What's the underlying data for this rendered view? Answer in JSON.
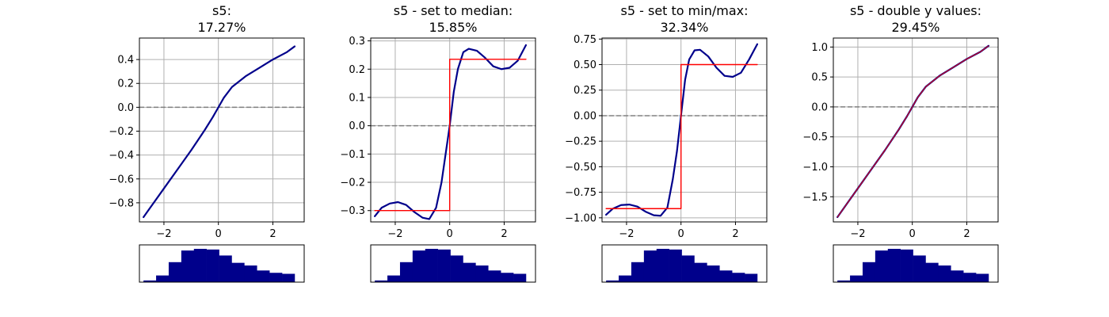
{
  "figure": {
    "colors": {
      "curve": "#00008b",
      "step": "#ff0000",
      "hist": "#00008b",
      "zero_line": "#808080",
      "grid": "#b0b0b0"
    }
  },
  "chart_data": [
    {
      "type": "line",
      "title": "s5:",
      "subtitle": "17.27%",
      "xlim": [
        -2.9,
        3.15
      ],
      "ylim": [
        -0.96,
        0.58
      ],
      "xticks": [
        -2,
        0,
        2
      ],
      "xtick_labels": [
        "−2",
        "0",
        "2"
      ],
      "yticks": [
        -0.8,
        -0.6,
        -0.4,
        -0.2,
        0.0,
        0.2,
        0.4
      ],
      "ytick_labels": [
        "−0.8",
        "−0.6",
        "−0.4",
        "−0.2",
        "0.0",
        "0.2",
        "0.4"
      ],
      "grid": true,
      "zero_line": 0,
      "series": [
        {
          "kind": "curve",
          "x": [
            -2.75,
            -2.5,
            -2.0,
            -1.5,
            -1.0,
            -0.5,
            -0.2,
            0.0,
            0.2,
            0.5,
            1.0,
            1.5,
            2.0,
            2.5,
            2.8
          ],
          "y": [
            -0.92,
            -0.84,
            -0.68,
            -0.52,
            -0.36,
            -0.19,
            -0.08,
            0.0,
            0.08,
            0.17,
            0.26,
            0.33,
            0.4,
            0.46,
            0.51
          ]
        }
      ],
      "histogram": [
        0.05,
        0.2,
        0.6,
        0.95,
        1.0,
        0.98,
        0.8,
        0.58,
        0.5,
        0.35,
        0.28,
        0.25
      ]
    },
    {
      "type": "line",
      "title": "s5 - set to median:",
      "subtitle": "15.85%",
      "xlim": [
        -2.9,
        3.15
      ],
      "ylim": [
        -0.34,
        0.31
      ],
      "xticks": [
        -2,
        0,
        2
      ],
      "xtick_labels": [
        "−2",
        "0",
        "2"
      ],
      "yticks": [
        -0.3,
        -0.2,
        -0.1,
        0.0,
        0.1,
        0.2,
        0.3
      ],
      "ytick_labels": [
        "−0.3",
        "−0.2",
        "−0.1",
        "0.0",
        "0.1",
        "0.2",
        "0.3"
      ],
      "grid": true,
      "zero_line": 0,
      "series": [
        {
          "kind": "curve",
          "x": [
            -2.75,
            -2.5,
            -2.2,
            -1.9,
            -1.6,
            -1.3,
            -1.0,
            -0.75,
            -0.5,
            -0.3,
            -0.15,
            0.0,
            0.15,
            0.3,
            0.5,
            0.7,
            1.0,
            1.3,
            1.6,
            1.9,
            2.2,
            2.5,
            2.8
          ],
          "y": [
            -0.32,
            -0.29,
            -0.275,
            -0.27,
            -0.28,
            -0.305,
            -0.325,
            -0.33,
            -0.29,
            -0.2,
            -0.1,
            0.0,
            0.12,
            0.2,
            0.26,
            0.272,
            0.265,
            0.24,
            0.21,
            0.2,
            0.205,
            0.23,
            0.285
          ]
        },
        {
          "kind": "step",
          "x": [
            -2.75,
            0.0,
            0.0,
            2.8
          ],
          "y": [
            -0.3,
            -0.3,
            0.235,
            0.235
          ]
        }
      ],
      "histogram": [
        0.05,
        0.2,
        0.6,
        0.95,
        1.0,
        0.98,
        0.8,
        0.58,
        0.5,
        0.35,
        0.28,
        0.25
      ]
    },
    {
      "type": "line",
      "title": "s5 - set to min/max:",
      "subtitle": "32.34%",
      "xlim": [
        -2.9,
        3.15
      ],
      "ylim": [
        -1.04,
        0.76
      ],
      "xticks": [
        -2,
        0,
        2
      ],
      "xtick_labels": [
        "−2",
        "0",
        "2"
      ],
      "yticks": [
        -1.0,
        -0.75,
        -0.5,
        -0.25,
        0.0,
        0.25,
        0.5,
        0.75
      ],
      "ytick_labels": [
        "−1.00",
        "−0.75",
        "−0.50",
        "−0.25",
        "0.00",
        "0.25",
        "0.50",
        "0.75"
      ],
      "grid": true,
      "zero_line": 0,
      "series": [
        {
          "kind": "curve",
          "x": [
            -2.75,
            -2.5,
            -2.2,
            -1.9,
            -1.6,
            -1.3,
            -1.0,
            -0.75,
            -0.5,
            -0.3,
            -0.15,
            0.0,
            0.15,
            0.3,
            0.5,
            0.7,
            1.0,
            1.3,
            1.6,
            1.9,
            2.2,
            2.5,
            2.8
          ],
          "y": [
            -0.97,
            -0.91,
            -0.875,
            -0.87,
            -0.89,
            -0.94,
            -0.975,
            -0.98,
            -0.9,
            -0.62,
            -0.35,
            0.0,
            0.35,
            0.55,
            0.64,
            0.645,
            0.58,
            0.47,
            0.39,
            0.38,
            0.42,
            0.55,
            0.7
          ]
        },
        {
          "kind": "step",
          "x": [
            -2.75,
            0.0,
            0.0,
            2.8
          ],
          "y": [
            -0.91,
            -0.91,
            0.5,
            0.5
          ]
        }
      ],
      "histogram": [
        0.05,
        0.2,
        0.6,
        0.95,
        1.0,
        0.98,
        0.8,
        0.58,
        0.5,
        0.35,
        0.28,
        0.25
      ]
    },
    {
      "type": "line",
      "title": "s5 - double y values:",
      "subtitle": "29.45%",
      "xlim": [
        -2.9,
        3.15
      ],
      "ylim": [
        -1.92,
        1.15
      ],
      "xticks": [
        -2,
        0,
        2
      ],
      "xtick_labels": [
        "−2",
        "0",
        "2"
      ],
      "yticks": [
        -1.5,
        -1.0,
        -0.5,
        0.0,
        0.5,
        1.0
      ],
      "ytick_labels": [
        "−1.5",
        "−1.0",
        "−0.5",
        "0.0",
        "0.5",
        "1.0"
      ],
      "grid": true,
      "zero_line": 0,
      "series": [
        {
          "kind": "curve",
          "x": [
            -2.75,
            -2.5,
            -2.0,
            -1.5,
            -1.0,
            -0.5,
            -0.2,
            0.0,
            0.2,
            0.5,
            1.0,
            1.5,
            2.0,
            2.5,
            2.8
          ],
          "y": [
            -1.84,
            -1.68,
            -1.36,
            -1.04,
            -0.72,
            -0.38,
            -0.16,
            0.0,
            0.16,
            0.34,
            0.52,
            0.66,
            0.8,
            0.92,
            1.02
          ]
        },
        {
          "kind": "overlay",
          "x": [
            -2.75,
            -2.5,
            -2.0,
            -1.5,
            -1.0,
            -0.5,
            -0.2,
            0.0,
            0.2,
            0.5,
            1.0,
            1.5,
            2.0,
            2.5,
            2.8
          ],
          "y": [
            -1.84,
            -1.68,
            -1.36,
            -1.04,
            -0.72,
            -0.38,
            -0.16,
            0.0,
            0.16,
            0.34,
            0.52,
            0.66,
            0.8,
            0.92,
            1.02
          ]
        }
      ],
      "histogram": [
        0.05,
        0.2,
        0.6,
        0.95,
        1.0,
        0.98,
        0.8,
        0.58,
        0.5,
        0.35,
        0.28,
        0.25
      ]
    }
  ]
}
